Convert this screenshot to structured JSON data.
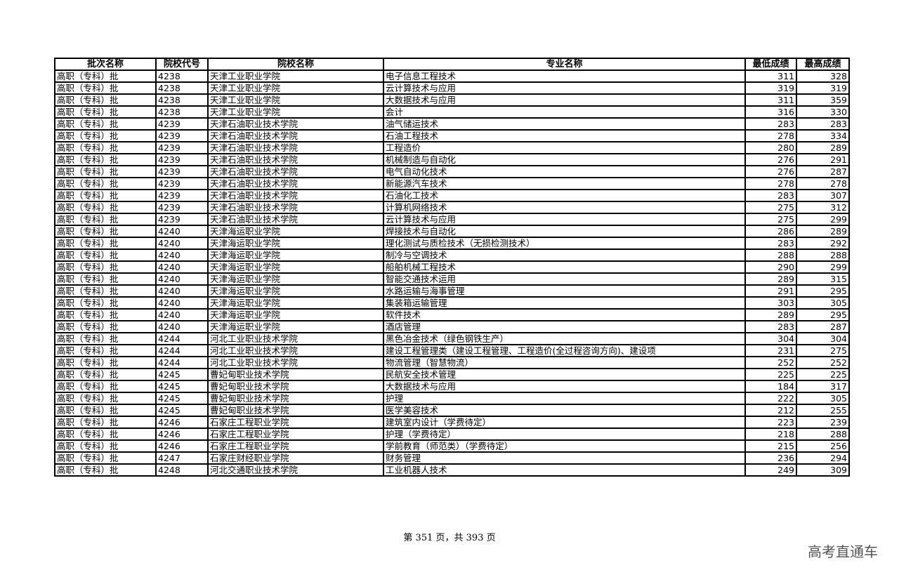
{
  "table": {
    "headers": [
      "批次名称",
      "院校代号",
      "院校名称",
      "专业名称",
      "最低成绩",
      "最高成绩"
    ],
    "rows": [
      [
        "高职（专科）批",
        "4238",
        "天津工业职业学院",
        "电子信息工程技术",
        "311",
        "328"
      ],
      [
        "高职（专科）批",
        "4238",
        "天津工业职业学院",
        "云计算技术与应用",
        "319",
        "319"
      ],
      [
        "高职（专科）批",
        "4238",
        "天津工业职业学院",
        "大数据技术与应用",
        "311",
        "359"
      ],
      [
        "高职（专科）批",
        "4238",
        "天津工业职业学院",
        "会计",
        "316",
        "330"
      ],
      [
        "高职（专科）批",
        "4239",
        "天津石油职业技术学院",
        "油气储运技术",
        "283",
        "283"
      ],
      [
        "高职（专科）批",
        "4239",
        "天津石油职业技术学院",
        "石油工程技术",
        "278",
        "334"
      ],
      [
        "高职（专科）批",
        "4239",
        "天津石油职业技术学院",
        "工程造价",
        "280",
        "289"
      ],
      [
        "高职（专科）批",
        "4239",
        "天津石油职业技术学院",
        "机械制造与自动化",
        "276",
        "291"
      ],
      [
        "高职（专科）批",
        "4239",
        "天津石油职业技术学院",
        "电气自动化技术",
        "276",
        "287"
      ],
      [
        "高职（专科）批",
        "4239",
        "天津石油职业技术学院",
        "新能源汽车技术",
        "278",
        "278"
      ],
      [
        "高职（专科）批",
        "4239",
        "天津石油职业技术学院",
        "石油化工技术",
        "283",
        "307"
      ],
      [
        "高职（专科）批",
        "4239",
        "天津石油职业技术学院",
        "计算机网络技术",
        "275",
        "312"
      ],
      [
        "高职（专科）批",
        "4239",
        "天津石油职业技术学院",
        "云计算技术与应用",
        "275",
        "299"
      ],
      [
        "高职（专科）批",
        "4240",
        "天津海运职业学院",
        "焊接技术与自动化",
        "286",
        "289"
      ],
      [
        "高职（专科）批",
        "4240",
        "天津海运职业学院",
        "理化测试与质检技术（无损检测技术）",
        "283",
        "292"
      ],
      [
        "高职（专科）批",
        "4240",
        "天津海运职业学院",
        "制冷与空调技术",
        "288",
        "288"
      ],
      [
        "高职（专科）批",
        "4240",
        "天津海运职业学院",
        "船舶机械工程技术",
        "290",
        "299"
      ],
      [
        "高职（专科）批",
        "4240",
        "天津海运职业学院",
        "智能交通技术运用",
        "289",
        "315"
      ],
      [
        "高职（专科）批",
        "4240",
        "天津海运职业学院",
        "水路运输与海事管理",
        "291",
        "295"
      ],
      [
        "高职（专科）批",
        "4240",
        "天津海运职业学院",
        "集装箱运输管理",
        "303",
        "305"
      ],
      [
        "高职（专科）批",
        "4240",
        "天津海运职业学院",
        "软件技术",
        "289",
        "295"
      ],
      [
        "高职（专科）批",
        "4240",
        "天津海运职业学院",
        "酒店管理",
        "283",
        "287"
      ],
      [
        "高职（专科）批",
        "4244",
        "河北工业职业技术学院",
        "黑色冶金技术（绿色钢铁生产）",
        "304",
        "304"
      ],
      [
        "高职（专科）批",
        "4244",
        "河北工业职业技术学院",
        "建设工程管理类（建设工程管理、工程造价(全过程咨询方向)、建设项",
        "231",
        "275"
      ],
      [
        "高职（专科）批",
        "4244",
        "河北工业职业技术学院",
        "物流管理（智慧物流）",
        "252",
        "252"
      ],
      [
        "高职（专科）批",
        "4245",
        "曹妃甸职业技术学院",
        "民航安全技术管理",
        "225",
        "225"
      ],
      [
        "高职（专科）批",
        "4245",
        "曹妃甸职业技术学院",
        "大数据技术与应用",
        "184",
        "317"
      ],
      [
        "高职（专科）批",
        "4245",
        "曹妃甸职业技术学院",
        "护理",
        "222",
        "305"
      ],
      [
        "高职（专科）批",
        "4245",
        "曹妃甸职业技术学院",
        "医学美容技术",
        "212",
        "255"
      ],
      [
        "高职（专科）批",
        "4246",
        "石家庄工程职业学院",
        "建筑室内设计（学费待定）",
        "223",
        "239"
      ],
      [
        "高职（专科）批",
        "4246",
        "石家庄工程职业学院",
        "护理（学费待定）",
        "218",
        "288"
      ],
      [
        "高职（专科）批",
        "4246",
        "石家庄工程职业学院",
        "学前教育（师范类）（学费待定）",
        "215",
        "256"
      ],
      [
        "高职（专科）批",
        "4247",
        "石家庄财经职业学院",
        "财务管理",
        "236",
        "294"
      ],
      [
        "高职（专科）批",
        "4248",
        "河北交通职业技术学院",
        "工业机器人技术",
        "249",
        "309"
      ]
    ]
  },
  "footer": {
    "page_text": "第 351 页，共 393 页"
  },
  "brand": "高考直通车"
}
